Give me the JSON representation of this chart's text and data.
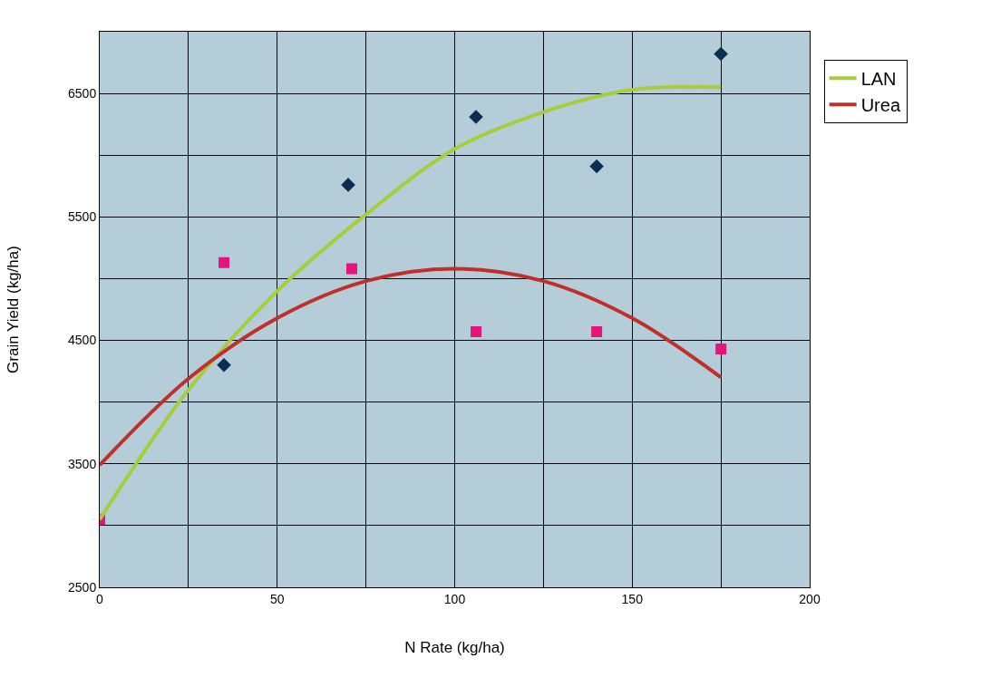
{
  "chart_data": {
    "type": "scatter",
    "xlabel": "N Rate (kg/ha)",
    "ylabel": "Grain Yield (kg/ha)",
    "xlim": [
      0,
      200
    ],
    "xticks": [
      0,
      50,
      100,
      150,
      200
    ],
    "ylim": [
      2500,
      7000
    ],
    "yticks": [
      2500,
      3500,
      4500,
      5500,
      6500
    ],
    "grid": true,
    "legend": "right",
    "series": [
      {
        "marker": "diamond",
        "color": "#0b2d52",
        "x": [
          35,
          70,
          106,
          140,
          175
        ],
        "values": [
          4300,
          5760,
          6310,
          5910,
          6820
        ]
      },
      {
        "marker": "square",
        "color": "#e3157d",
        "x": [
          0,
          35,
          71,
          106,
          140,
          175
        ],
        "values": [
          3050,
          5130,
          5080,
          4570,
          4570,
          4430
        ]
      },
      {
        "type": "line",
        "name": "LAN",
        "color": "#a8cc3c",
        "x": [
          0,
          25,
          50,
          75,
          100,
          125,
          150,
          175
        ],
        "values": [
          3050,
          4100,
          4900,
          5520,
          6050,
          6350,
          6530,
          6550
        ]
      },
      {
        "type": "line",
        "name": "Urea",
        "color": "#c0302a",
        "x": [
          0,
          25,
          50,
          75,
          100,
          125,
          150,
          175
        ],
        "values": [
          3490,
          4190,
          4680,
          4980,
          5080,
          4980,
          4680,
          4200
        ]
      }
    ]
  }
}
